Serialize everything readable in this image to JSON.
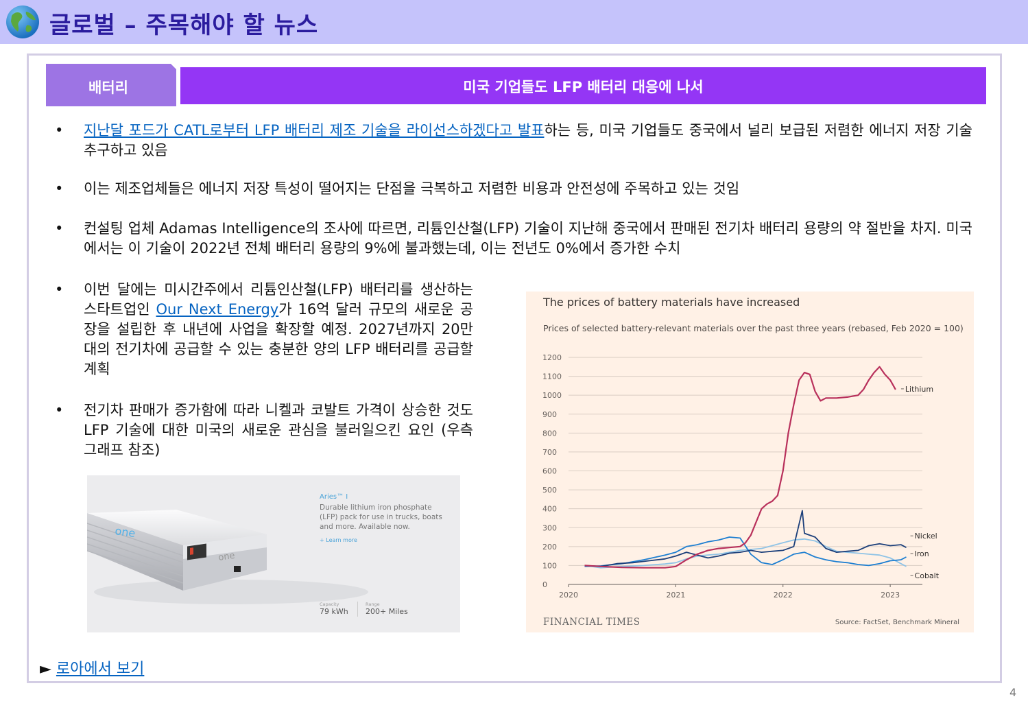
{
  "header": {
    "title": "글로벌 – 주목해야 할 뉴스",
    "icon": "globe-icon"
  },
  "category": "배터리",
  "headline": "미국 기업들도 LFP 배터리 대응에 나서",
  "bullets": [
    {
      "link_text": "지난달 포드가 CATL로부터 LFP 배터리 제조 기술을 라이선스하겠다고 발표",
      "rest": "하는 등, 미국 기업들도 중국에서 널리 보급된 저렴한 에너지 저장 기술 추구하고 있음"
    },
    {
      "text": "이는 제조업체들은 에너지 저장 특성이 떨어지는 단점을 극복하고 저렴한 비용과 안전성에 주목하고 있는 것임"
    },
    {
      "text": "컨설팅 업체 Adamas Intelligence의 조사에 따르면, 리튬인산철(LFP) 기술이 지난해 중국에서 판매된 전기차 배터리 용량의 약 절반을 차지. 미국에서는 이 기술이 2022년 전체 배터리 용량의 9%에 불과했는데, 이는 전년도 0%에서 증가한 수치"
    },
    {
      "before": "이번 달에는 미시간주에서 리튬인산철(LFP) 배터리를 생산하는 스타트업인 ",
      "link_text": "Our Next Energy",
      "after": "가 16억 달러 규모의 새로운 공장을 설립한 후 내년에 사업을 확장할 예정. 2027년까지 20만 대의 전기차에 공급할 수 있는 충분한 양의 LFP 배터리를 공급할 계획"
    },
    {
      "text": "전기차 판매가 증가함에 따라 니켈과 코발트 가격이 상승한 것도 LFP 기술에 대한 미국의 새로운 관심을 불러일으킨 요인 (우측 그래프 참조)"
    }
  ],
  "bullet_symbol": "•",
  "product": {
    "name": "Aries™ I",
    "description": "Durable lithium iron phosphate (LFP) pack for use in trucks, boats and more. Available now.",
    "learn_more": "+ Learn more",
    "specs": [
      {
        "label": "Capacity",
        "value": "79 kWh"
      },
      {
        "label": "Range",
        "value": "200+ Miles"
      }
    ],
    "pack_logo": "one"
  },
  "chart_data": {
    "type": "line",
    "title": "The prices of battery materials have increased",
    "subtitle": "Prices of selected battery-relevant materials over the past three years (rebased, Feb 2020 = 100)",
    "ylim": [
      0,
      1200
    ],
    "yticks": [
      0,
      100,
      200,
      300,
      400,
      500,
      600,
      700,
      800,
      900,
      1000,
      1100,
      1200
    ],
    "xlim": [
      2020,
      2023.3
    ],
    "xticks": [
      2020,
      2021,
      2022,
      2023
    ],
    "grid": true,
    "series": [
      {
        "name": "Lithium",
        "color": "#b8305b",
        "points": [
          [
            2020.15,
            100
          ],
          [
            2020.3,
            95
          ],
          [
            2020.5,
            90
          ],
          [
            2020.7,
            88
          ],
          [
            2020.9,
            88
          ],
          [
            2021.0,
            95
          ],
          [
            2021.1,
            130
          ],
          [
            2021.2,
            160
          ],
          [
            2021.3,
            180
          ],
          [
            2021.4,
            190
          ],
          [
            2021.5,
            195
          ],
          [
            2021.6,
            200
          ],
          [
            2021.65,
            220
          ],
          [
            2021.7,
            260
          ],
          [
            2021.75,
            330
          ],
          [
            2021.8,
            400
          ],
          [
            2021.85,
            425
          ],
          [
            2021.9,
            440
          ],
          [
            2021.95,
            470
          ],
          [
            2022.0,
            600
          ],
          [
            2022.05,
            800
          ],
          [
            2022.1,
            950
          ],
          [
            2022.15,
            1080
          ],
          [
            2022.2,
            1120
          ],
          [
            2022.25,
            1110
          ],
          [
            2022.3,
            1020
          ],
          [
            2022.35,
            970
          ],
          [
            2022.4,
            985
          ],
          [
            2022.5,
            985
          ],
          [
            2022.6,
            990
          ],
          [
            2022.7,
            1000
          ],
          [
            2022.75,
            1030
          ],
          [
            2022.8,
            1080
          ],
          [
            2022.85,
            1120
          ],
          [
            2022.9,
            1150
          ],
          [
            2022.95,
            1110
          ],
          [
            2023.0,
            1080
          ],
          [
            2023.05,
            1030
          ]
        ]
      },
      {
        "name": "Nickel",
        "color": "#1c3f7a",
        "points": [
          [
            2020.15,
            100
          ],
          [
            2020.3,
            95
          ],
          [
            2020.45,
            110
          ],
          [
            2020.6,
            115
          ],
          [
            2020.75,
            125
          ],
          [
            2020.9,
            135
          ],
          [
            2021.0,
            150
          ],
          [
            2021.1,
            170
          ],
          [
            2021.2,
            155
          ],
          [
            2021.3,
            140
          ],
          [
            2021.4,
            150
          ],
          [
            2021.5,
            165
          ],
          [
            2021.6,
            170
          ],
          [
            2021.7,
            180
          ],
          [
            2021.8,
            170
          ],
          [
            2021.9,
            175
          ],
          [
            2022.0,
            180
          ],
          [
            2022.1,
            200
          ],
          [
            2022.18,
            390
          ],
          [
            2022.2,
            270
          ],
          [
            2022.3,
            250
          ],
          [
            2022.4,
            190
          ],
          [
            2022.5,
            170
          ],
          [
            2022.6,
            175
          ],
          [
            2022.7,
            180
          ],
          [
            2022.8,
            205
          ],
          [
            2022.9,
            215
          ],
          [
            2023.0,
            205
          ],
          [
            2023.1,
            210
          ],
          [
            2023.15,
            195
          ]
        ]
      },
      {
        "name": "Iron",
        "color": "#1e7fd1",
        "points": [
          [
            2020.15,
            95
          ],
          [
            2020.3,
            98
          ],
          [
            2020.5,
            110
          ],
          [
            2020.7,
            130
          ],
          [
            2020.9,
            155
          ],
          [
            2021.0,
            170
          ],
          [
            2021.1,
            200
          ],
          [
            2021.2,
            210
          ],
          [
            2021.3,
            225
          ],
          [
            2021.4,
            235
          ],
          [
            2021.5,
            250
          ],
          [
            2021.6,
            245
          ],
          [
            2021.7,
            160
          ],
          [
            2021.8,
            115
          ],
          [
            2021.9,
            105
          ],
          [
            2022.0,
            130
          ],
          [
            2022.1,
            160
          ],
          [
            2022.2,
            170
          ],
          [
            2022.3,
            145
          ],
          [
            2022.4,
            130
          ],
          [
            2022.5,
            120
          ],
          [
            2022.6,
            115
          ],
          [
            2022.7,
            105
          ],
          [
            2022.8,
            100
          ],
          [
            2022.9,
            110
          ],
          [
            2023.0,
            125
          ],
          [
            2023.1,
            130
          ],
          [
            2023.15,
            145
          ]
        ]
      },
      {
        "name": "Cobalt",
        "color": "#8fc3e6",
        "points": [
          [
            2020.15,
            100
          ],
          [
            2020.3,
            88
          ],
          [
            2020.5,
            95
          ],
          [
            2020.7,
            100
          ],
          [
            2020.9,
            108
          ],
          [
            2021.0,
            115
          ],
          [
            2021.1,
            135
          ],
          [
            2021.2,
            150
          ],
          [
            2021.3,
            155
          ],
          [
            2021.4,
            160
          ],
          [
            2021.5,
            170
          ],
          [
            2021.6,
            180
          ],
          [
            2021.7,
            185
          ],
          [
            2021.8,
            190
          ],
          [
            2021.9,
            205
          ],
          [
            2022.0,
            220
          ],
          [
            2022.1,
            235
          ],
          [
            2022.2,
            240
          ],
          [
            2022.3,
            230
          ],
          [
            2022.4,
            200
          ],
          [
            2022.5,
            175
          ],
          [
            2022.6,
            170
          ],
          [
            2022.7,
            165
          ],
          [
            2022.8,
            160
          ],
          [
            2022.9,
            155
          ],
          [
            2023.0,
            140
          ],
          [
            2023.1,
            110
          ],
          [
            2023.15,
            95
          ]
        ]
      }
    ],
    "footer": "FINANCIAL TIMES",
    "source": "Source: FactSet, Benchmark Mineral"
  },
  "more_link": {
    "arrow": "►",
    "text": "로아에서 보기"
  },
  "page_number": "4"
}
